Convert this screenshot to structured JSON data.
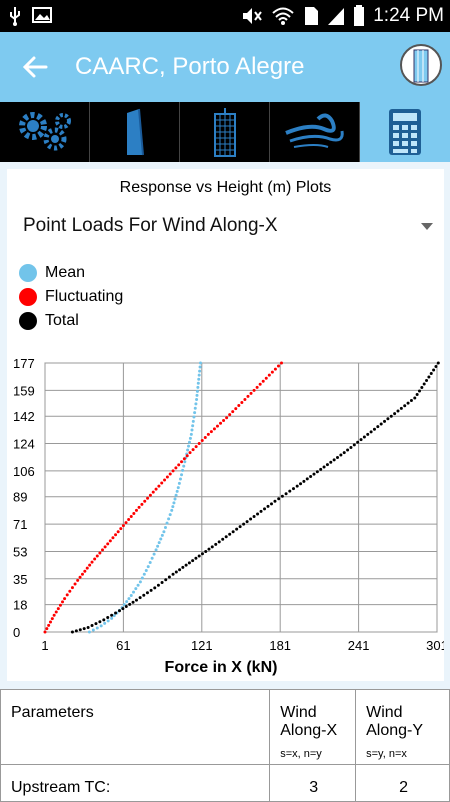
{
  "status_bar": {
    "time": "1:24 PM",
    "icons": [
      "usb-icon",
      "image-icon",
      "mute-icon",
      "wifi-icon",
      "sim-icon",
      "signal-icon",
      "battery-icon"
    ]
  },
  "app_bar": {
    "title": "CAARC, Porto Alegre",
    "back_icon": "arrow-left-icon",
    "avatar_icon": "building-icon"
  },
  "tabs": [
    {
      "icon": "gears-icon",
      "active": false
    },
    {
      "icon": "tower-icon",
      "active": false
    },
    {
      "icon": "building-grid-icon",
      "active": false
    },
    {
      "icon": "wind-icon",
      "active": false
    },
    {
      "icon": "calculator-icon",
      "active": true
    }
  ],
  "panel": {
    "heading": "Response vs Height (m) Plots",
    "dropdown_value": "Point Loads For Wind Along-X"
  },
  "legend": [
    {
      "label": "Mean",
      "color": "#72c4ea"
    },
    {
      "label": "Fluctuating",
      "color": "#ff0000"
    },
    {
      "label": "Total",
      "color": "#000000"
    }
  ],
  "chart_data": {
    "type": "scatter",
    "title": "",
    "xlabel": "Force in X (kN)",
    "ylabel": "",
    "xlim": [
      1,
      301
    ],
    "ylim": [
      0,
      177
    ],
    "x_ticks": [
      "1",
      "61",
      "121",
      "181",
      "241",
      "301"
    ],
    "y_ticks": [
      "0",
      "18",
      "35",
      "53",
      "71",
      "89",
      "106",
      "124",
      "142",
      "159",
      "177"
    ],
    "series": [
      {
        "name": "Mean",
        "color": "#72c4ea",
        "x": [
          35,
          44,
          52,
          60,
          67,
          74,
          80,
          86,
          92,
          98,
          103,
          108,
          113,
          117,
          120
        ],
        "y": [
          0,
          4,
          9,
          16,
          24,
          33,
          43,
          54,
          66,
          80,
          95,
          112,
          130,
          153,
          177
        ]
      },
      {
        "name": "Fluctuating",
        "color": "#ff0000",
        "x": [
          1,
          8,
          16,
          26,
          37,
          49,
          61,
          73,
          86,
          99,
          112,
          126,
          140,
          154,
          168,
          182
        ],
        "y": [
          0,
          11,
          22,
          34,
          46,
          58,
          70,
          82,
          94,
          106,
          118,
          130,
          141,
          153,
          165,
          177
        ]
      },
      {
        "name": "Total",
        "color": "#000000",
        "x": [
          22,
          34,
          46,
          58,
          71,
          85,
          99,
          114,
          129,
          145,
          161,
          177,
          194,
          212,
          230,
          248,
          266,
          284,
          302
        ],
        "y": [
          0,
          3,
          8,
          14,
          21,
          29,
          38,
          47,
          56,
          66,
          76,
          86,
          96,
          107,
          118,
          130,
          142,
          154,
          177
        ]
      }
    ]
  },
  "table": {
    "header": {
      "label": "Parameters",
      "col1": "Wind Along-X",
      "col1_sub": "s=x, n=y",
      "col2": "Wind Along-Y",
      "col2_sub": "s=y, n=x"
    },
    "rows": [
      {
        "label": "Upstream TC:",
        "col1": "3",
        "col2": "2"
      }
    ]
  }
}
